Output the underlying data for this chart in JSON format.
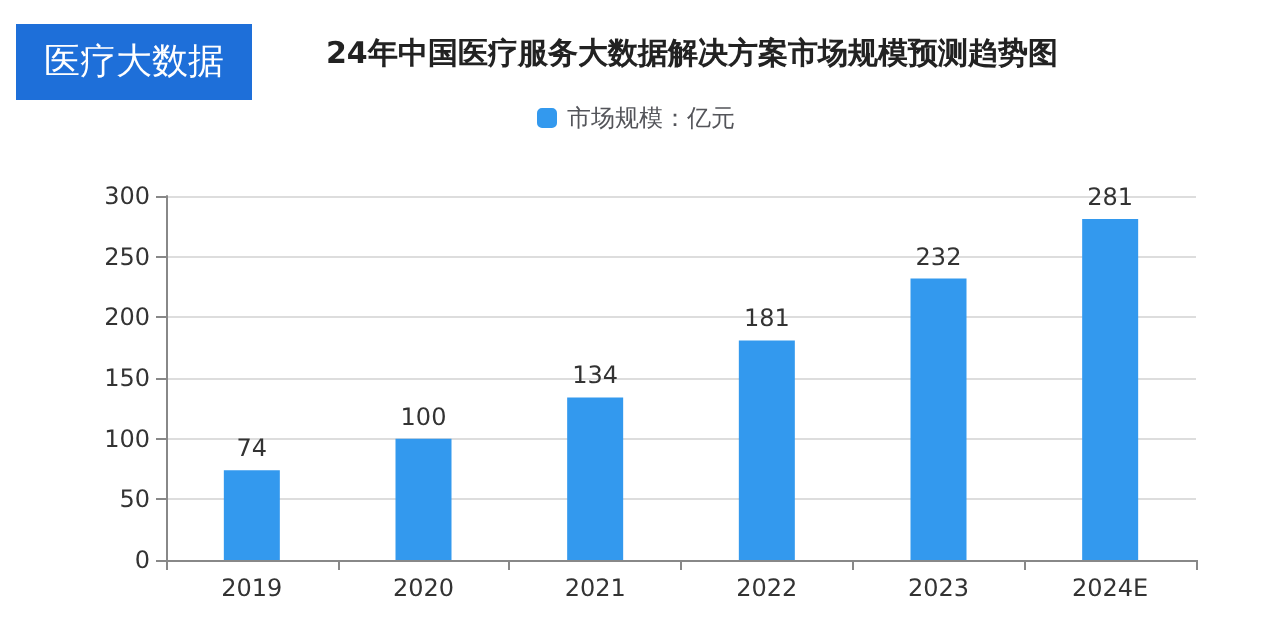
{
  "chart_data": {
    "type": "bar",
    "title": "24年中国医疗服务大数据解决方案市场规模预测趋势图",
    "annotations": [
      "医疗大数据"
    ],
    "categories": [
      "2019",
      "2020",
      "2021",
      "2022",
      "2023",
      "2024E"
    ],
    "series": [
      {
        "name": "市场规模：亿元",
        "color": "#3399ee",
        "values": [
          74,
          100,
          134,
          181,
          232,
          281
        ]
      }
    ],
    "ylim": [
      0,
      300
    ],
    "yticks": [
      0,
      50,
      100,
      150,
      200,
      250,
      300
    ],
    "grid": "y",
    "legend": "top",
    "data_labels": true
  }
}
